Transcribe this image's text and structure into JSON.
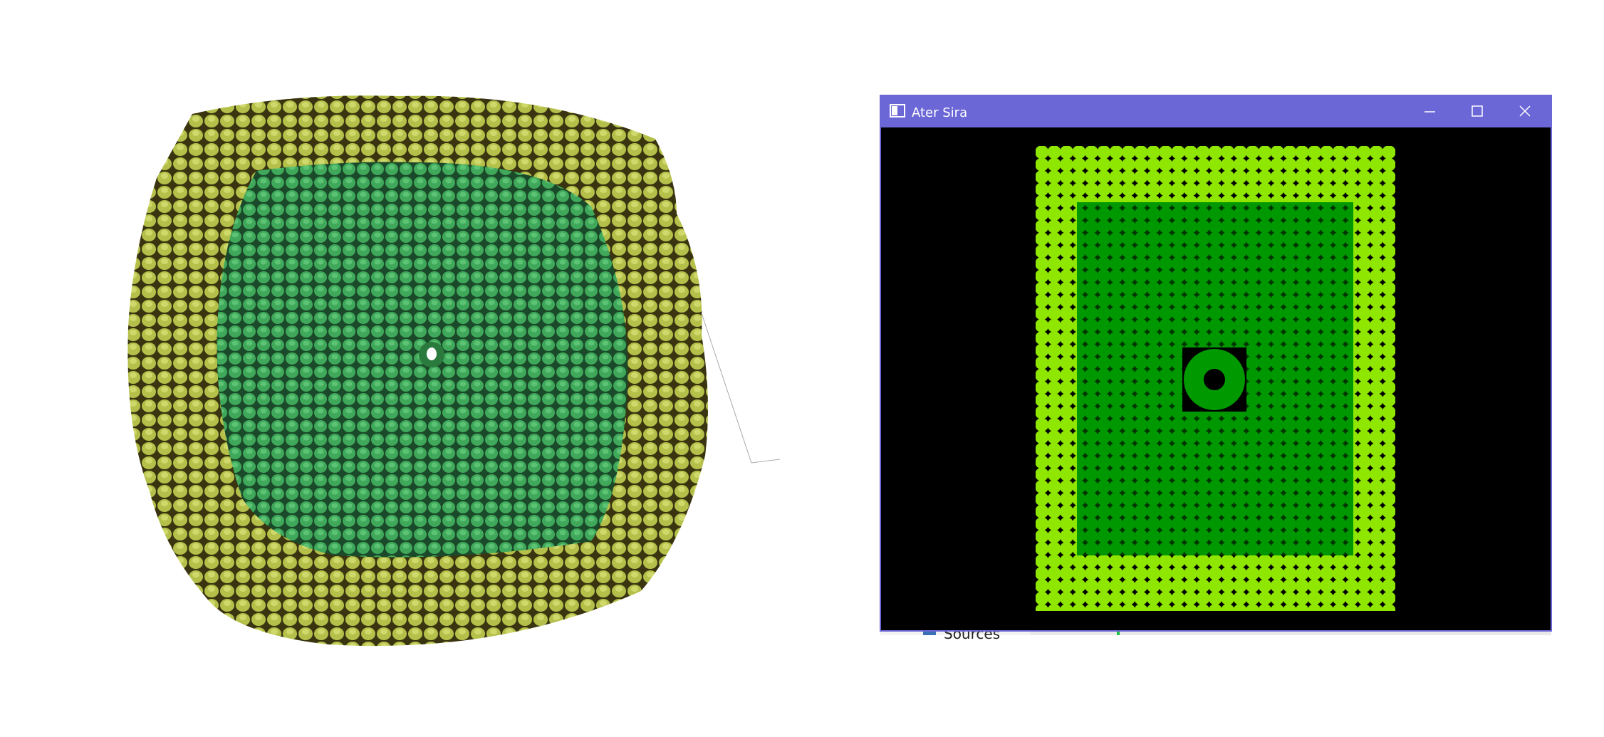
{
  "window": {
    "title": "Ater Sira"
  },
  "background_window": {
    "tree_item": "Sources"
  }
}
